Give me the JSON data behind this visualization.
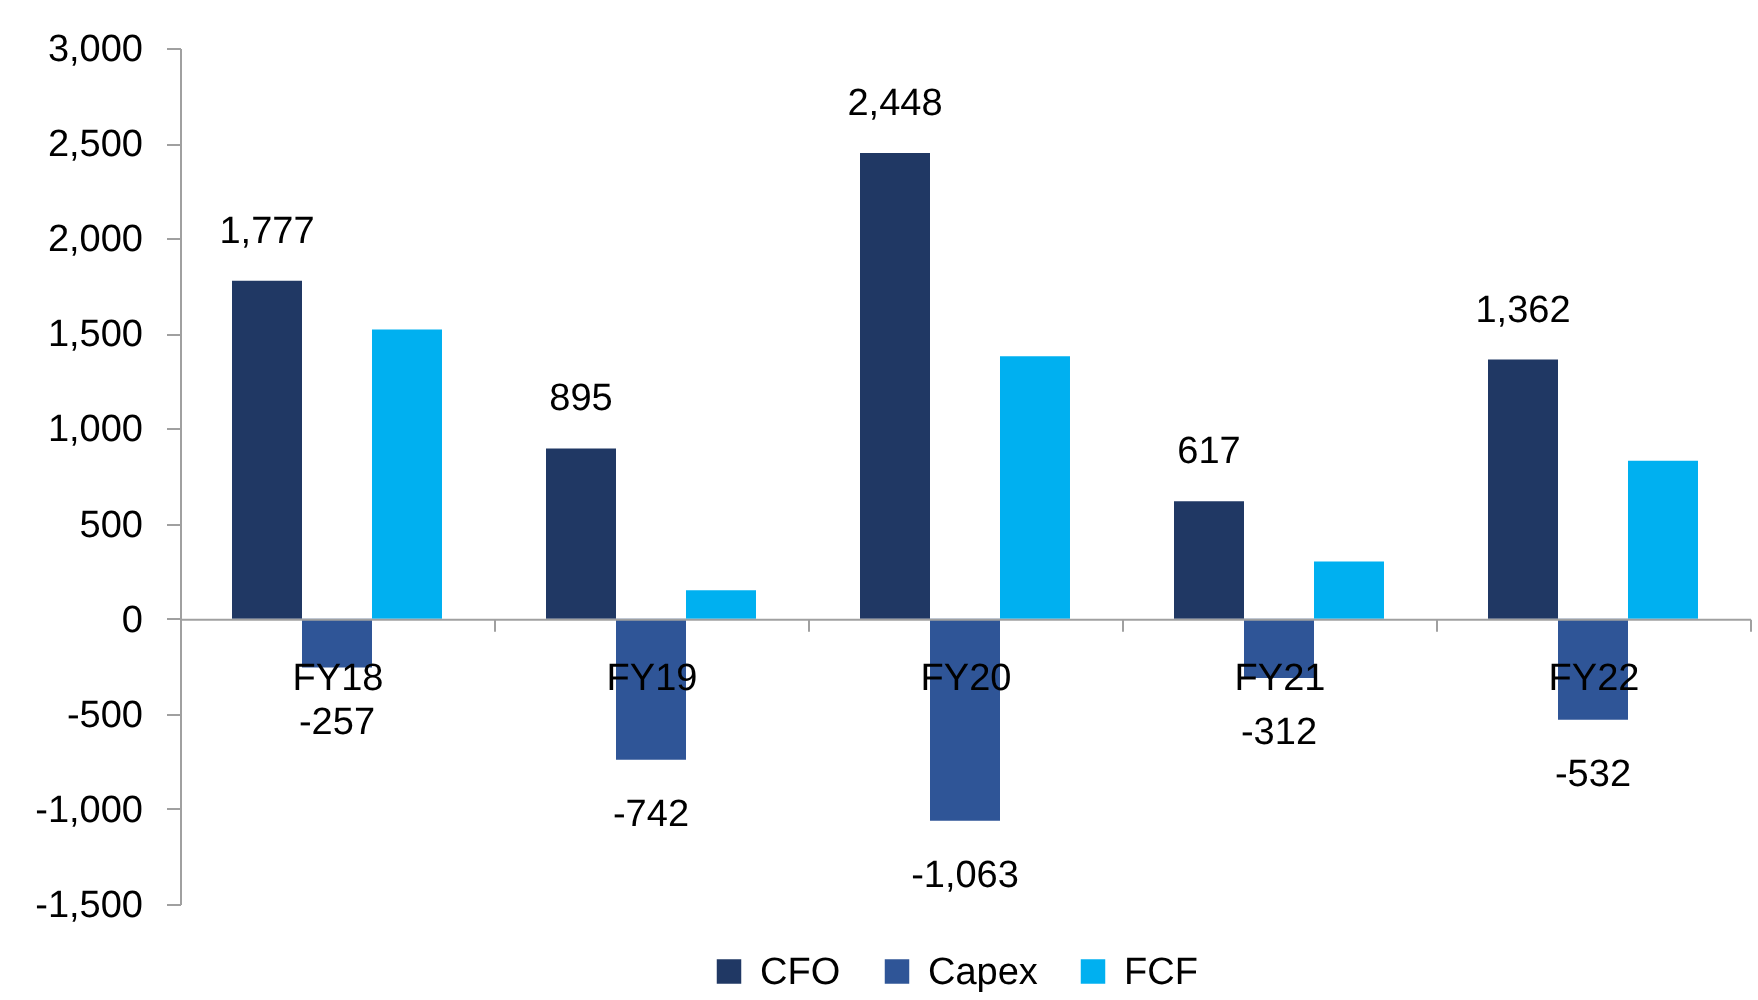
{
  "chart_data": {
    "type": "bar",
    "categories": [
      "FY18",
      "FY19",
      "FY20",
      "FY21",
      "FY22"
    ],
    "series": [
      {
        "name": "CFO",
        "color": "#203864",
        "values": [
          1777,
          895,
          2448,
          617,
          1362
        ],
        "value_labels": [
          "1,777",
          "895",
          "2,448",
          "617",
          "1,362"
        ]
      },
      {
        "name": "Capex",
        "color": "#2f5597",
        "values": [
          -257,
          -742,
          -1063,
          -312,
          -532
        ],
        "value_labels": [
          "-257",
          "-742",
          "-1,063",
          "-312",
          "-532"
        ]
      },
      {
        "name": "FCF",
        "color": "#00b0f0",
        "values": [
          1520,
          150,
          1380,
          300,
          830
        ]
      }
    ],
    "ylim": [
      -1500,
      3000
    ],
    "yticks": [
      {
        "value": -1500,
        "label": "-1,500"
      },
      {
        "value": -1000,
        "label": "-1,000"
      },
      {
        "value": -500,
        "label": "-500"
      },
      0,
      500,
      {
        "value": 1000,
        "label": "1,000"
      },
      {
        "value": 1500,
        "label": "1,500"
      },
      {
        "value": 2000,
        "label": "2,000"
      },
      {
        "value": 2500,
        "label": "2,500"
      },
      {
        "value": 3000,
        "label": "3,000"
      }
    ],
    "grid": false,
    "legend": "bottom"
  }
}
